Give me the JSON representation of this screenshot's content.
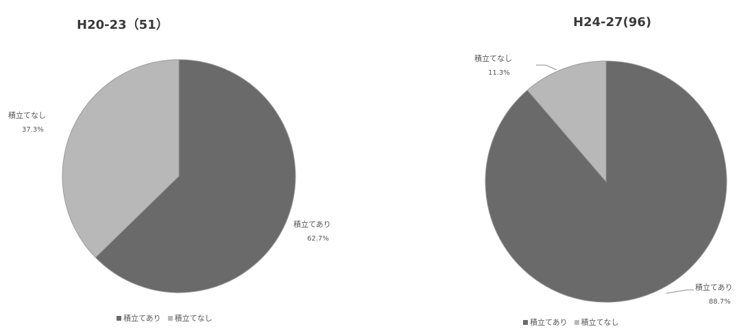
{
  "colors": {
    "slice_yes": "#6a6a6a",
    "slice_no": "#b8b8b8",
    "stroke": "#9a9a9a",
    "leader": "#8a8a8a"
  },
  "chart_data": [
    {
      "type": "pie",
      "title": "H20-23（51）",
      "categories": [
        "積立てあり",
        "積立てなし"
      ],
      "values": [
        62.7,
        37.3
      ],
      "value_labels": [
        "62.7%",
        "37.3%"
      ],
      "legend": {
        "position": "bottom",
        "entries": [
          "積立てあり",
          "積立てなし"
        ]
      }
    },
    {
      "type": "pie",
      "title": "H24-27(96)",
      "categories": [
        "積立てあり",
        "積立てなし"
      ],
      "values": [
        88.7,
        11.3
      ],
      "value_labels": [
        "88.7%",
        "11.3%"
      ],
      "legend": {
        "position": "bottom",
        "entries": [
          "積立てあり",
          "積立てなし"
        ]
      }
    }
  ]
}
